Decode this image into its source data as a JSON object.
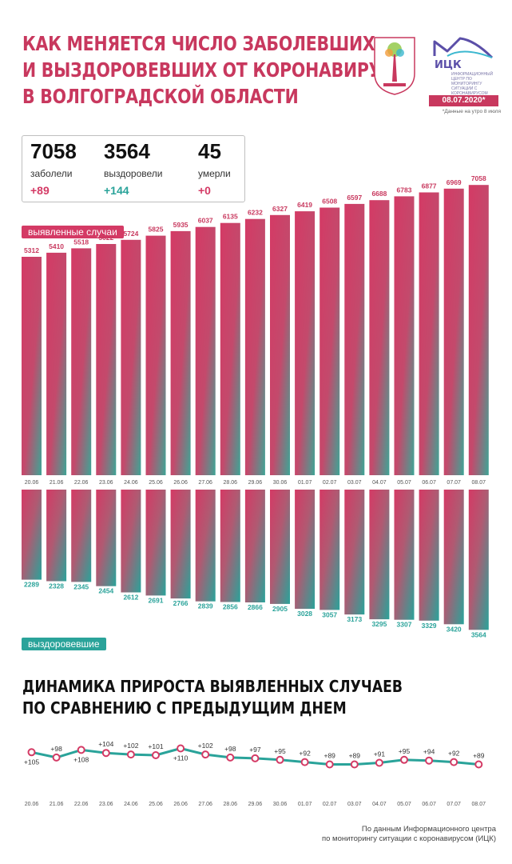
{
  "header": {
    "title_lines": [
      "КАК МЕНЯЕТСЯ ЧИСЛО ЗАБОЛЕВШИХ",
      "И ВЫЗДОРОВЕВШИХ ОТ КОРОНАВИРУСА",
      "В ВОЛГОГРАДСКОЙ ОБЛАСТИ"
    ],
    "logo_name": "ИЦК",
    "logo_desc": "ИНФОРМАЦИОННЫЙ ЦЕНТР ПО МОНИТОРИНГУ СИТУАЦИИ С КОРОНАВИРУСОМ",
    "date": "08.07.2020*",
    "date_note": "*Данные на утро 8 июля"
  },
  "summary": {
    "cases": {
      "value": "7058",
      "label": "заболели",
      "delta": "+89"
    },
    "recovered": {
      "value": "3564",
      "label": "выздоровели",
      "delta": "+144"
    },
    "deaths": {
      "value": "45",
      "label": "умерли",
      "delta": "+0"
    }
  },
  "legend": {
    "cases": "выявленные случаи",
    "recovered": "выздоровевшие"
  },
  "section2_title_lines": [
    "ДИНАМИКА ПРИРОСТА ВЫЯВЛЕННЫХ СЛУЧАЕВ",
    "ПО СРАВНЕНИЮ С ПРЕДЫДУЩИМ ДНЕМ"
  ],
  "source_lines": [
    "По данным Информационного центра",
    "по мониторингу ситуации с коронавирусом (ИЦК)"
  ],
  "colors": {
    "cases_accent": "#c8385e",
    "recovered_accent": "#2aa39a",
    "line": "#2aa39a",
    "marker": "#d43a65"
  },
  "chart_data": [
    {
      "type": "bar",
      "categories": [
        "20.06",
        "21.06",
        "22.06",
        "23.06",
        "24.06",
        "25.06",
        "26.06",
        "27.06",
        "28.06",
        "29.06",
        "30.06",
        "01.07",
        "02.07",
        "03.07",
        "04.07",
        "05.07",
        "06.07",
        "07.07",
        "08.07"
      ],
      "series": [
        {
          "name": "выявленные случаи",
          "values": [
            5312,
            5410,
            5518,
            5622,
            5724,
            5825,
            5935,
            6037,
            6135,
            6232,
            6327,
            6419,
            6508,
            6597,
            6688,
            6783,
            6877,
            6969,
            7058
          ]
        },
        {
          "name": "выздоровевшие",
          "values": [
            2289,
            2328,
            2345,
            2454,
            2612,
            2691,
            2766,
            2839,
            2856,
            2866,
            2905,
            3028,
            3057,
            3173,
            3295,
            3307,
            3329,
            3420,
            3564
          ]
        }
      ]
    },
    {
      "type": "line",
      "title": "ДИНАМИКА ПРИРОСТА ВЫЯВЛЕННЫХ СЛУЧАЕВ ПО СРАВНЕНИЮ С ПРЕДЫДУЩИМ ДНЕМ",
      "categories": [
        "20.06",
        "21.06",
        "22.06",
        "23.06",
        "24.06",
        "25.06",
        "26.06",
        "27.06",
        "28.06",
        "29.06",
        "30.06",
        "01.07",
        "02.07",
        "03.07",
        "04.07",
        "05.07",
        "06.07",
        "07.07",
        "08.07"
      ],
      "values": [
        105,
        98,
        108,
        104,
        102,
        101,
        110,
        102,
        98,
        97,
        95,
        92,
        89,
        89,
        91,
        95,
        94,
        92,
        89
      ]
    }
  ]
}
